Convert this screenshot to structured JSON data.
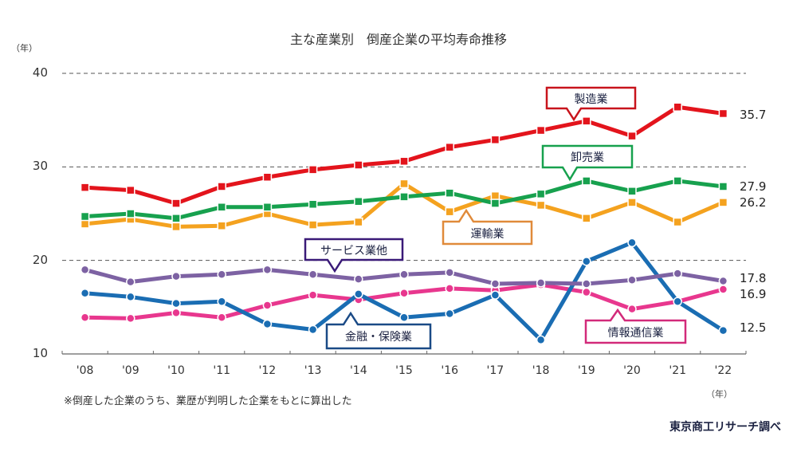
{
  "chart_data": {
    "type": "line",
    "title": "主な産業別　倒産企業の平均寿命推移",
    "ylabel": "（年）",
    "xlabel": "（年）",
    "ylim": [
      10,
      40
    ],
    "yticks": [
      "40",
      "30",
      "20",
      "10"
    ],
    "ytick_values": [
      40,
      30,
      20,
      10
    ],
    "grid": true,
    "categories": [
      "'08",
      "'09",
      "'10",
      "'11",
      "'12",
      "'13",
      "'14",
      "'15",
      "'16",
      "'17",
      "'18",
      "'19",
      "'20",
      "'21",
      "'22"
    ],
    "series": [
      {
        "name": "製造業",
        "color": "#e3141c",
        "marker": "square",
        "values": [
          27.8,
          27.5,
          26.1,
          27.9,
          28.9,
          29.7,
          30.2,
          30.6,
          32.1,
          32.9,
          33.9,
          34.9,
          33.3,
          36.4,
          35.7
        ],
        "end_label": "35.7"
      },
      {
        "name": "卸売業",
        "color": "#17a14e",
        "marker": "square",
        "values": [
          24.7,
          25.0,
          24.5,
          25.7,
          25.7,
          26.0,
          26.3,
          26.8,
          27.2,
          26.1,
          27.1,
          28.5,
          27.4,
          28.5,
          27.9
        ],
        "end_label": "27.9"
      },
      {
        "name": "運輸業",
        "color": "#f4a21f",
        "marker": "square",
        "values": [
          23.9,
          24.4,
          23.6,
          23.7,
          25.0,
          23.8,
          24.1,
          28.2,
          25.2,
          26.9,
          25.9,
          24.5,
          26.2,
          24.1,
          26.2
        ],
        "end_label": "26.2"
      },
      {
        "name": "サービス業他",
        "color": "#7d62a3",
        "marker": "circle",
        "values": [
          19.0,
          17.7,
          18.3,
          18.5,
          19.0,
          18.5,
          18.0,
          18.5,
          18.7,
          17.5,
          17.6,
          17.5,
          17.9,
          18.6,
          17.8
        ],
        "end_label": "17.8"
      },
      {
        "name": "金融・保険業",
        "color": "#1a6db3",
        "marker": "circle",
        "values": [
          16.5,
          16.1,
          15.4,
          15.6,
          13.2,
          12.6,
          16.4,
          13.9,
          14.3,
          16.3,
          11.5,
          19.9,
          21.9,
          15.6,
          12.5
        ],
        "end_label": "12.5"
      },
      {
        "name": "情報通信業",
        "color": "#e8378e",
        "marker": "circle",
        "values": [
          13.9,
          13.8,
          14.4,
          13.9,
          15.2,
          16.3,
          15.8,
          16.5,
          17.0,
          16.8,
          17.4,
          16.6,
          14.8,
          15.6,
          16.9
        ],
        "end_label": "16.9"
      }
    ],
    "callouts": [
      {
        "text": "製造業",
        "border": "#c8141c"
      },
      {
        "text": "卸売業",
        "border": "#17a14e"
      },
      {
        "text": "運輸業",
        "border": "#e08a3a"
      },
      {
        "text": "サービス業他",
        "border": "#3a1a78"
      },
      {
        "text": "金融・保険業",
        "border": "#1a4a86"
      },
      {
        "text": "情報通信業",
        "border": "#d22a7a"
      }
    ],
    "legend": "none (inline callout labels)"
  },
  "note": "※倒産した企業のうち、業歴が判明した企業をもとに算出した",
  "source": "東京商工リサーチ調べ"
}
